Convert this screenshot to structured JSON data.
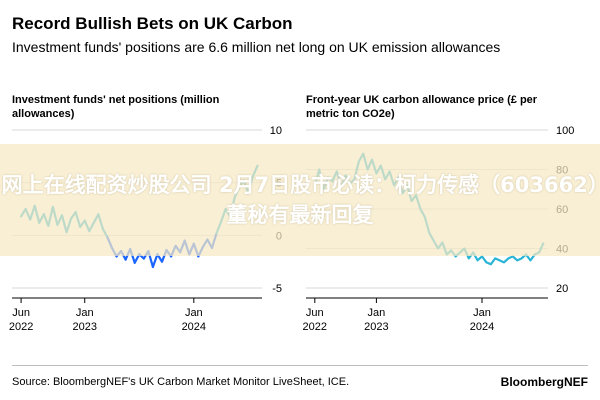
{
  "header": {
    "title": "Record Bullish Bets on UK Carbon",
    "subtitle": "Investment funds' positions are 6.6 million net long on UK emission allowances"
  },
  "chart_data": [
    {
      "type": "line",
      "title": "Investment funds' net positions (million allowances)",
      "y_ticks": [
        10,
        5,
        0,
        -5
      ],
      "ylim": [
        -5,
        10
      ],
      "x_ticks": [
        {
          "label": "Jun",
          "sub": "2022",
          "t": 0
        },
        {
          "label": "Jan",
          "sub": "2023",
          "t": 7
        },
        {
          "label": "Jan",
          "sub": "2024",
          "t": 19
        }
      ],
      "xlim": [
        -1,
        26.5
      ],
      "line_color_above": "#2ab5d6",
      "line_color_below": "#1a64ff",
      "series": [
        {
          "x": [
            0,
            0.5,
            1,
            1.5,
            2,
            2.5,
            3,
            3.5,
            4,
            4.5,
            5,
            5.5,
            6,
            6.5,
            7,
            7.5,
            8,
            8.5,
            9,
            9.5,
            10,
            10.5,
            11,
            11.5,
            12,
            12.5,
            13,
            13.5,
            14,
            14.5,
            15,
            15.5,
            16,
            16.5,
            17,
            17.5,
            18,
            18.5,
            19,
            19.5,
            20,
            20.5,
            21,
            21.5,
            22,
            22.5,
            23,
            23.5,
            24,
            24.5,
            25,
            25.5,
            26
          ],
          "values": [
            1.8,
            2.5,
            1.5,
            2.8,
            1.2,
            2.0,
            0.9,
            2.7,
            1.0,
            1.9,
            0.3,
            1.6,
            2.2,
            0.8,
            1.4,
            0.4,
            1.2,
            2.0,
            0.6,
            -0.2,
            -1.2,
            -2.0,
            -1.5,
            -2.3,
            -1.3,
            -2.6,
            -1.8,
            -2.2,
            -1.5,
            -3.0,
            -1.8,
            -2.5,
            -1.4,
            -2.0,
            -1.0,
            -1.6,
            -0.5,
            -1.8,
            -0.8,
            -2.0,
            -1.1,
            -0.4,
            -1.2,
            0.2,
            1.3,
            2.5,
            1.8,
            3.6,
            4.6,
            5.2,
            4.0,
            5.6,
            6.6
          ]
        }
      ]
    },
    {
      "type": "line",
      "title": "Front-year UK carbon allowance price (£ per metric ton CO2e)",
      "y_ticks": [
        100,
        80,
        60,
        40,
        20
      ],
      "ylim": [
        20,
        100
      ],
      "x_ticks": [
        {
          "label": "Jun",
          "sub": "2022",
          "t": 0
        },
        {
          "label": "Jan",
          "sub": "2023",
          "t": 7
        },
        {
          "label": "Jan",
          "sub": "2024",
          "t": 19
        }
      ],
      "xlim": [
        -1,
        26.5
      ],
      "line_color": "#2ab5d6",
      "series": [
        {
          "x": [
            0,
            0.5,
            1,
            1.5,
            2,
            2.5,
            3,
            3.5,
            4,
            4.5,
            5,
            5.5,
            6,
            6.5,
            7,
            7.5,
            8,
            8.5,
            9,
            9.5,
            10,
            10.5,
            11,
            11.5,
            12,
            12.5,
            13,
            13.5,
            14,
            14.5,
            15,
            15.5,
            16,
            16.5,
            17,
            17.5,
            18,
            18.5,
            19,
            19.5,
            20,
            20.5,
            21,
            21.5,
            22,
            22.5,
            23,
            23.5,
            24,
            24.5,
            25,
            25.5,
            26
          ],
          "values": [
            72,
            80,
            70,
            76,
            74,
            79,
            71,
            77,
            73,
            75,
            84,
            88,
            80,
            85,
            78,
            82,
            75,
            79,
            72,
            76,
            68,
            72,
            64,
            67,
            60,
            56,
            48,
            44,
            40,
            43,
            37,
            39,
            36,
            38,
            40,
            35,
            38,
            34,
            36,
            33,
            32,
            35,
            34,
            33,
            35,
            36,
            34,
            35,
            37,
            34,
            37,
            38,
            43
          ]
        }
      ]
    }
  ],
  "banner": {
    "text": "网上在线配资炒股公司 2月7日股市必读：柯力传感（603662）董秘有最新回复"
  },
  "footer": {
    "source": "Source: BloombergNEF's UK Carbon Market Monitor LiveSheet, ICE.",
    "brand": "BloombergNEF"
  }
}
